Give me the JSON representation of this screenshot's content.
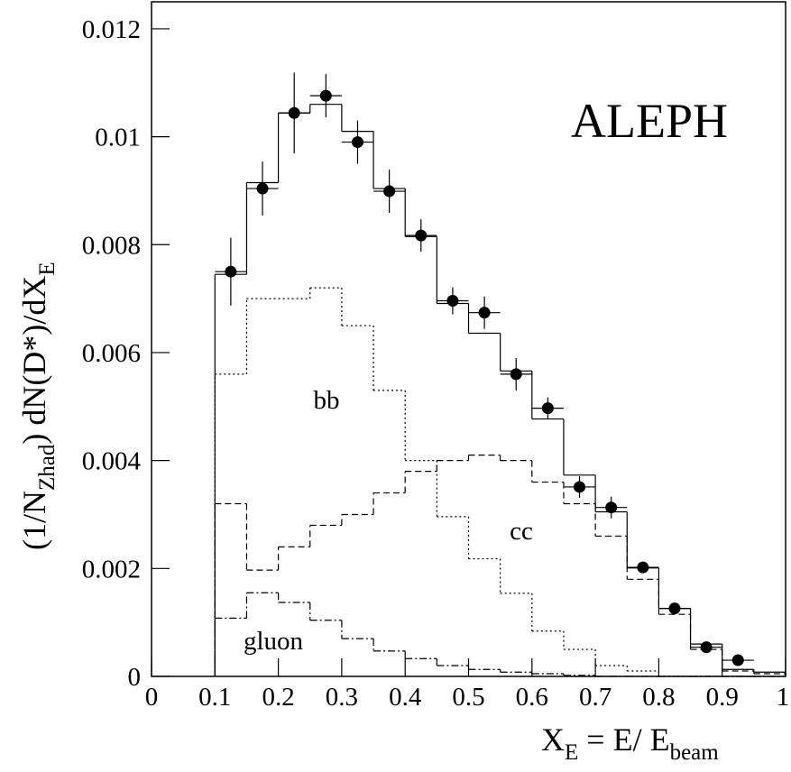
{
  "chart_data": {
    "type": "histogram",
    "xlabel": [
      "X",
      "E",
      " = E/ E",
      "beam"
    ],
    "ylabel": [
      "(1/N",
      "Zhad",
      ") dN(D*)/dX",
      "E"
    ],
    "annotations": [
      "ALEPH",
      "bb",
      "cc",
      "gluon"
    ],
    "xlim": [
      0,
      1
    ],
    "ylim": [
      0,
      0.0125
    ],
    "xticks": [
      0,
      0.1,
      0.2,
      0.3,
      0.4,
      0.5,
      0.6,
      0.7,
      0.8,
      0.9,
      1
    ],
    "yticks": [
      0,
      0.002,
      0.004,
      0.006,
      0.008,
      0.01,
      0.012
    ],
    "bins": [
      0.1,
      0.15,
      0.2,
      0.25,
      0.3,
      0.35,
      0.4,
      0.45,
      0.5,
      0.55,
      0.6,
      0.65,
      0.7,
      0.75,
      0.8,
      0.85,
      0.9,
      0.95,
      1.0
    ],
    "series": [
      {
        "color": "#000000",
        "linestyle": "solid",
        "values": [
          0.00745,
          0.00915,
          0.01044,
          0.0106,
          0.0101,
          0.00904,
          0.00815,
          0.00691,
          0.00636,
          0.00566,
          0.00477,
          0.00373,
          0.00305,
          0.00201,
          0.00126,
          0.0006,
          0.00013,
          8e-05
        ]
      },
      {
        "name": "bb",
        "color": "#000000",
        "linestyle": "dotted",
        "values": [
          0.0056,
          0.007,
          0.007,
          0.0072,
          0.0065,
          0.0053,
          0.004,
          0.00296,
          0.00218,
          0.00154,
          0.00084,
          0.0005,
          0.0002,
          0.0001,
          0,
          0,
          0,
          0
        ]
      },
      {
        "name": "cc",
        "color": "#000000",
        "linestyle": "dashed",
        "values": [
          0.0032,
          0.00197,
          0.0024,
          0.0028,
          0.003,
          0.0034,
          0.0038,
          0.004,
          0.0041,
          0.004,
          0.0036,
          0.0032,
          0.0026,
          0.0018,
          0.00115,
          0.0005,
          0.0001,
          5e-05
        ]
      },
      {
        "name": "gluon",
        "color": "#000000",
        "linestyle": "dashdot",
        "values": [
          0.00108,
          0.00155,
          0.00137,
          0.00104,
          0.0007,
          0.00047,
          0.00033,
          0.0002,
          0.00013,
          8e-05,
          5e-05,
          2e-05,
          0,
          0,
          0,
          0,
          0,
          0
        ]
      }
    ],
    "points": {
      "color": "#000000",
      "x": [
        0.125,
        0.175,
        0.225,
        0.275,
        0.325,
        0.375,
        0.425,
        0.475,
        0.525,
        0.575,
        0.625,
        0.675,
        0.725,
        0.775,
        0.825,
        0.875,
        0.925
      ],
      "values": [
        0.0075,
        0.00904,
        0.01044,
        0.01076,
        0.0099,
        0.00899,
        0.00817,
        0.00696,
        0.00674,
        0.0056,
        0.00497,
        0.00351,
        0.00313,
        0.00202,
        0.00126,
        0.00054,
        0.0003
      ],
      "errors": [
        0.00063,
        0.0005,
        0.00075,
        0.0004,
        0.0004,
        0.0004,
        0.0003,
        0.00025,
        0.0003,
        0.0003,
        0.0002,
        0.0002,
        0.0002,
        0.0001,
        0.0001,
        5e-05,
        5e-05
      ]
    }
  }
}
